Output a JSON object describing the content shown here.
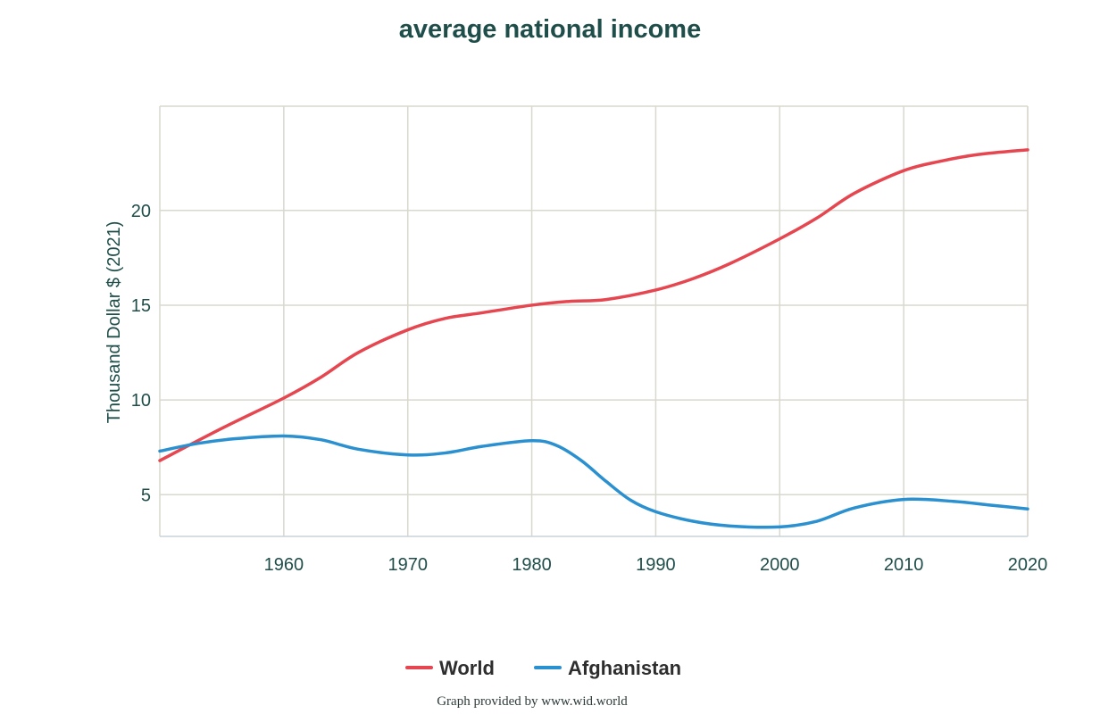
{
  "credit": "Graph provided by www.wid.world",
  "chart_data": {
    "type": "line",
    "title": "average national income",
    "xlabel": "",
    "ylabel": "Thousand Dollar $ (2021)",
    "xlim": [
      1950,
      2020
    ],
    "ylim": [
      2.8,
      25.5
    ],
    "x_ticks": [
      1960,
      1970,
      1980,
      1990,
      2000,
      2010,
      2020
    ],
    "y_ticks": [
      5,
      10,
      15,
      20
    ],
    "grid": true,
    "legend_position": "bottom-center",
    "series": [
      {
        "name": "World",
        "color": "#e5464f",
        "x": [
          1950,
          1955,
          1960,
          1963,
          1966,
          1970,
          1973,
          1976,
          1980,
          1983,
          1986,
          1990,
          1993,
          1996,
          2000,
          2003,
          2006,
          2010,
          2013,
          2016,
          2020
        ],
        "y": [
          6.8,
          8.5,
          10.1,
          11.2,
          12.5,
          13.7,
          14.3,
          14.6,
          15.0,
          15.2,
          15.3,
          15.8,
          16.4,
          17.2,
          18.5,
          19.6,
          20.9,
          22.1,
          22.6,
          22.95,
          23.2
        ]
      },
      {
        "name": "Afghanistan",
        "color": "#2a90cf",
        "x": [
          1950,
          1953,
          1956,
          1960,
          1963,
          1966,
          1970,
          1973,
          1976,
          1980,
          1982,
          1984,
          1986,
          1988,
          1990,
          1993,
          1996,
          2000,
          2003,
          2006,
          2010,
          2014,
          2017,
          2020
        ],
        "y": [
          7.3,
          7.7,
          7.95,
          8.1,
          7.9,
          7.4,
          7.1,
          7.2,
          7.55,
          7.85,
          7.6,
          6.8,
          5.7,
          4.7,
          4.1,
          3.6,
          3.35,
          3.3,
          3.6,
          4.3,
          4.75,
          4.65,
          4.45,
          4.25
        ]
      }
    ]
  }
}
